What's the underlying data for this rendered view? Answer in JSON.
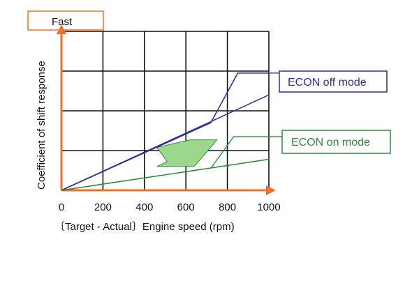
{
  "chart_data": {
    "type": "line",
    "title": "",
    "xlabel": "〔Target - Actual〕Engine speed (rpm)",
    "ylabel": "Coefficient of shift response",
    "y_top_label": "Fast",
    "xlim": [
      0,
      1000
    ],
    "ylim": [
      0,
      4
    ],
    "x_ticks": [
      "0",
      "200",
      "400",
      "600",
      "800",
      "1000"
    ],
    "grid": true,
    "series": [
      {
        "name": "ECON off mode",
        "color": "#2e2e9a",
        "x": [
          0,
          720,
          850,
          1000
        ],
        "y": [
          0,
          1.7,
          2.95,
          2.95
        ]
      },
      {
        "name": "ECON on mode",
        "color": "#2e8b3e",
        "x": [
          0,
          1000
        ],
        "y": [
          0,
          0.78
        ]
      }
    ],
    "extra_line": {
      "color": "#2e2e9a",
      "x": [
        0,
        1000
      ],
      "y": [
        0,
        2.4
      ]
    },
    "shift_arrow": {
      "color": "#9bd88b",
      "stroke": "#2e8b3e",
      "x": [
        460,
        620,
        750,
        640,
        460,
        510
      ],
      "y": [
        1.08,
        1.27,
        1.27,
        0.6,
        0.6,
        0.72
      ]
    },
    "accent_color": "#f07028"
  }
}
